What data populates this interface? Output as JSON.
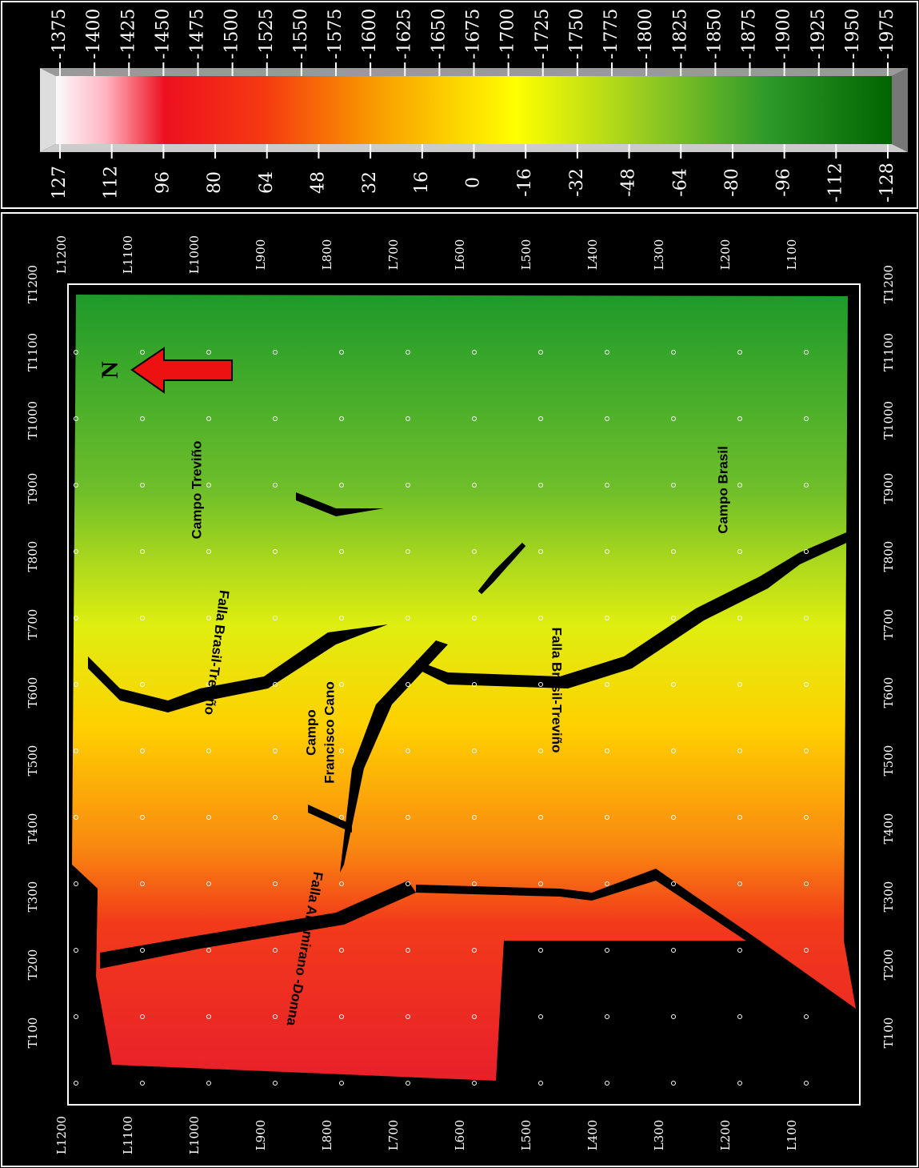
{
  "legend": {
    "depth_labels": [
      -1375,
      -1400,
      -1425,
      -1450,
      -1475,
      -1500,
      -1525,
      -1550,
      -1575,
      -1600,
      -1625,
      -1650,
      -1675,
      -1700,
      -1725,
      -1750,
      -1775,
      -1800,
      -1825,
      -1850,
      -1875,
      -1900,
      -1925,
      -1950,
      -1975
    ],
    "amplitude_labels": [
      127,
      112,
      96,
      80,
      64,
      48,
      32,
      16,
      0,
      -16,
      -32,
      -48,
      -64,
      -80,
      -96,
      -112,
      -128
    ]
  },
  "map": {
    "t_labels": [
      "T1200",
      "T1100",
      "T1000",
      "T900",
      "T800",
      "T700",
      "T600",
      "T500",
      "T400",
      "T300",
      "T200",
      "T100"
    ],
    "l_labels": [
      "L1200",
      "L1100",
      "L1000",
      "L900",
      "L800",
      "L700",
      "L600",
      "L500",
      "L400",
      "L300",
      "L200",
      "L100"
    ],
    "north": "N",
    "annotations": {
      "campo_trevino": "Campo Treviño",
      "campo_brasil": "Campo Brasil",
      "campo_francisco_cano": [
        "Campo",
        "Francisco Cano"
      ],
      "falla_brasil_trevino_1": "Falla Brasil-Treviño",
      "falla_brasil_trevino_2": "Falla Brasil-Treviño",
      "falla_altamirano_donna": "Falla Altamirano -Donna"
    }
  }
}
